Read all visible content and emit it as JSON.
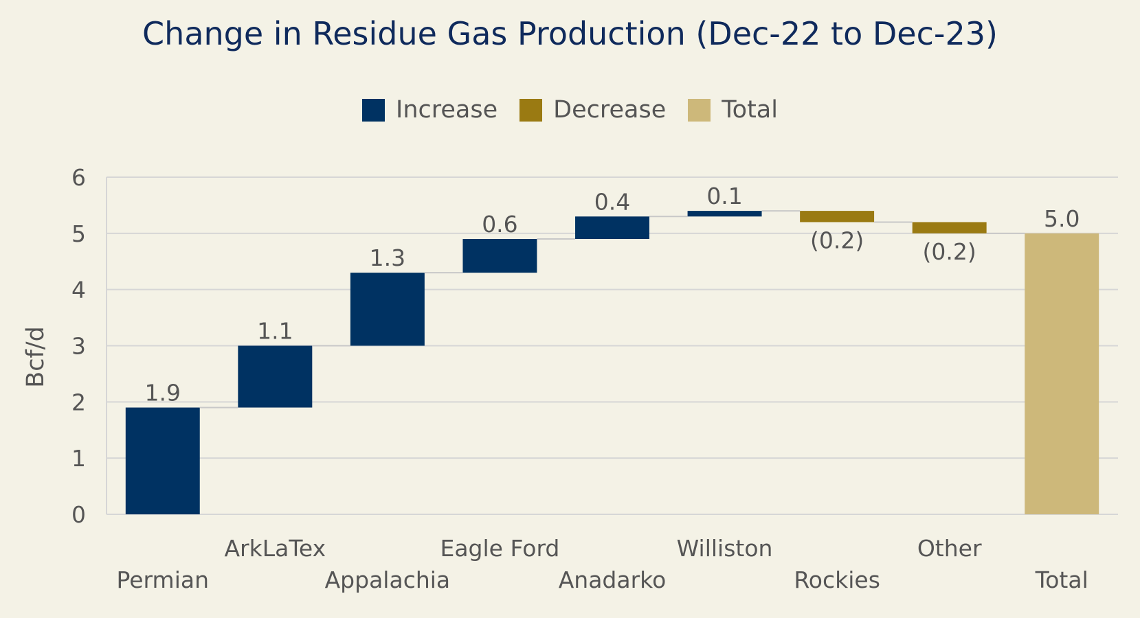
{
  "chart_data": {
    "type": "bar",
    "subtype": "waterfall",
    "title": "Change in Residue Gas Production (Dec-22 to Dec-23)",
    "ylabel": "Bcf/d",
    "xlabel": "",
    "ylim": [
      0,
      6
    ],
    "yticks": [
      "0",
      "1",
      "2",
      "3",
      "4",
      "5",
      "6"
    ],
    "grid": true,
    "legend_position": "top",
    "legend": [
      {
        "label": "Increase",
        "color": "#003262"
      },
      {
        "label": "Decrease",
        "color": "#9a7a12"
      },
      {
        "label": "Total",
        "color": "#cdb87a"
      }
    ],
    "categories": [
      "Permian",
      "ArkLaTex",
      "Appalachia",
      "Eagle Ford",
      "Anadarko",
      "Williston",
      "Rockies",
      "Other",
      "Total"
    ],
    "values": [
      1.9,
      1.1,
      1.3,
      0.6,
      0.4,
      0.1,
      -0.2,
      -0.2,
      5.0
    ],
    "data_labels": [
      "1.9",
      "1.1",
      "1.3",
      "0.6",
      "0.4",
      "0.1",
      "(0.2)",
      "(0.2)",
      "5.0"
    ],
    "bar_types": [
      "increase",
      "increase",
      "increase",
      "increase",
      "increase",
      "increase",
      "decrease",
      "decrease",
      "total"
    ]
  }
}
